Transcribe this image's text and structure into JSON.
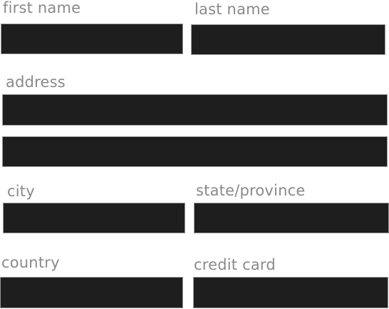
{
  "form": {
    "first_name": {
      "label": "first name",
      "value": "",
      "placeholder": ""
    },
    "last_name": {
      "label": "last name",
      "value": "",
      "placeholder": ""
    },
    "address": {
      "label": "address",
      "line1_value": "",
      "line2_value": "",
      "placeholder": ""
    },
    "city": {
      "label": "city",
      "value": "",
      "placeholder": ""
    },
    "state_province": {
      "label": "state/province",
      "value": "",
      "placeholder": ""
    },
    "country": {
      "label": "country",
      "value": "",
      "placeholder": ""
    },
    "credit_card": {
      "label": "credit card",
      "value": "",
      "placeholder": ""
    }
  },
  "colors": {
    "field_background": "#1e1e1e",
    "field_border": "#9a9a9a",
    "label_text": "#8a8a8a",
    "page_background": "#ffffff"
  }
}
